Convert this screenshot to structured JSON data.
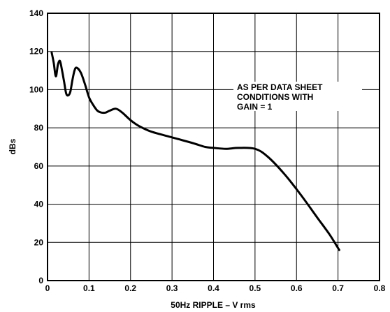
{
  "chart_data": {
    "type": "line",
    "title": "",
    "xlabel": "50Hz RIPPLE – V rms",
    "ylabel": "dBs",
    "xlim": [
      0,
      0.8
    ],
    "ylim": [
      0,
      140
    ],
    "grid": true,
    "x_ticks": [
      "0",
      "0.1",
      "0.2",
      "0.3",
      "0.4",
      "0.5",
      "0.6",
      "0.7",
      "0.8"
    ],
    "y_ticks": [
      "0",
      "20",
      "40",
      "60",
      "80",
      "100",
      "120",
      "140"
    ],
    "annotation": [
      "AS PER DATA SHEET",
      "CONDITIONS WITH",
      "GAIN = 1"
    ],
    "series": [
      {
        "color": "#000000",
        "points": [
          [
            0.01,
            119.5
          ],
          [
            0.015,
            114
          ],
          [
            0.02,
            107
          ],
          [
            0.025,
            113
          ],
          [
            0.03,
            115
          ],
          [
            0.035,
            110
          ],
          [
            0.04,
            104
          ],
          [
            0.045,
            98
          ],
          [
            0.05,
            97
          ],
          [
            0.055,
            99
          ],
          [
            0.06,
            105
          ],
          [
            0.065,
            110
          ],
          [
            0.07,
            111.5
          ],
          [
            0.08,
            109
          ],
          [
            0.09,
            103
          ],
          [
            0.1,
            96
          ],
          [
            0.11,
            92
          ],
          [
            0.12,
            89
          ],
          [
            0.13,
            88
          ],
          [
            0.14,
            88
          ],
          [
            0.15,
            89
          ],
          [
            0.165,
            90
          ],
          [
            0.18,
            88
          ],
          [
            0.2,
            84
          ],
          [
            0.22,
            81
          ],
          [
            0.25,
            78
          ],
          [
            0.3,
            75
          ],
          [
            0.35,
            72
          ],
          [
            0.38,
            70
          ],
          [
            0.4,
            69.5
          ],
          [
            0.43,
            69
          ],
          [
            0.46,
            69.5
          ],
          [
            0.5,
            69
          ],
          [
            0.53,
            65
          ],
          [
            0.57,
            56
          ],
          [
            0.61,
            45
          ],
          [
            0.65,
            33
          ],
          [
            0.68,
            24
          ],
          [
            0.703,
            16
          ]
        ]
      }
    ]
  }
}
